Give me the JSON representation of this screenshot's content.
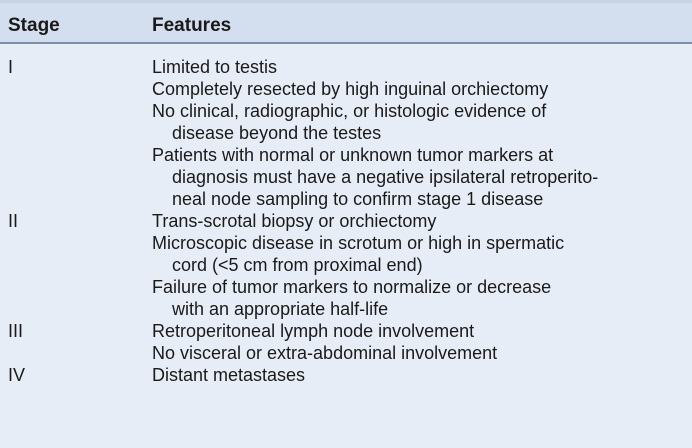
{
  "table": {
    "headers": {
      "stage": "Stage",
      "features": "Features"
    },
    "rows": [
      {
        "stage": "I",
        "features": [
          "Limited to testis",
          "Completely resected by high inguinal orchiectomy",
          "No clinical, radiographic, or histologic evidence of\ndisease beyond the testes",
          "Patients with normal or unknown tumor markers at\ndiagnosis must have a negative ipsilateral retroperito-\nneal node sampling to confirm stage 1 disease"
        ]
      },
      {
        "stage": "II",
        "features": [
          "Trans-scrotal biopsy or orchiectomy",
          "Microscopic disease in scrotum or high in spermatic\ncord (<5 cm from proximal end)",
          "Failure of tumor markers to normalize or decrease\nwith an appropriate half-life"
        ]
      },
      {
        "stage": "III",
        "features": [
          "Retroperitoneal lymph node involvement",
          "No visceral or extra-abdominal involvement"
        ]
      },
      {
        "stage": "IV",
        "features": [
          "Distant metastases"
        ]
      }
    ]
  }
}
